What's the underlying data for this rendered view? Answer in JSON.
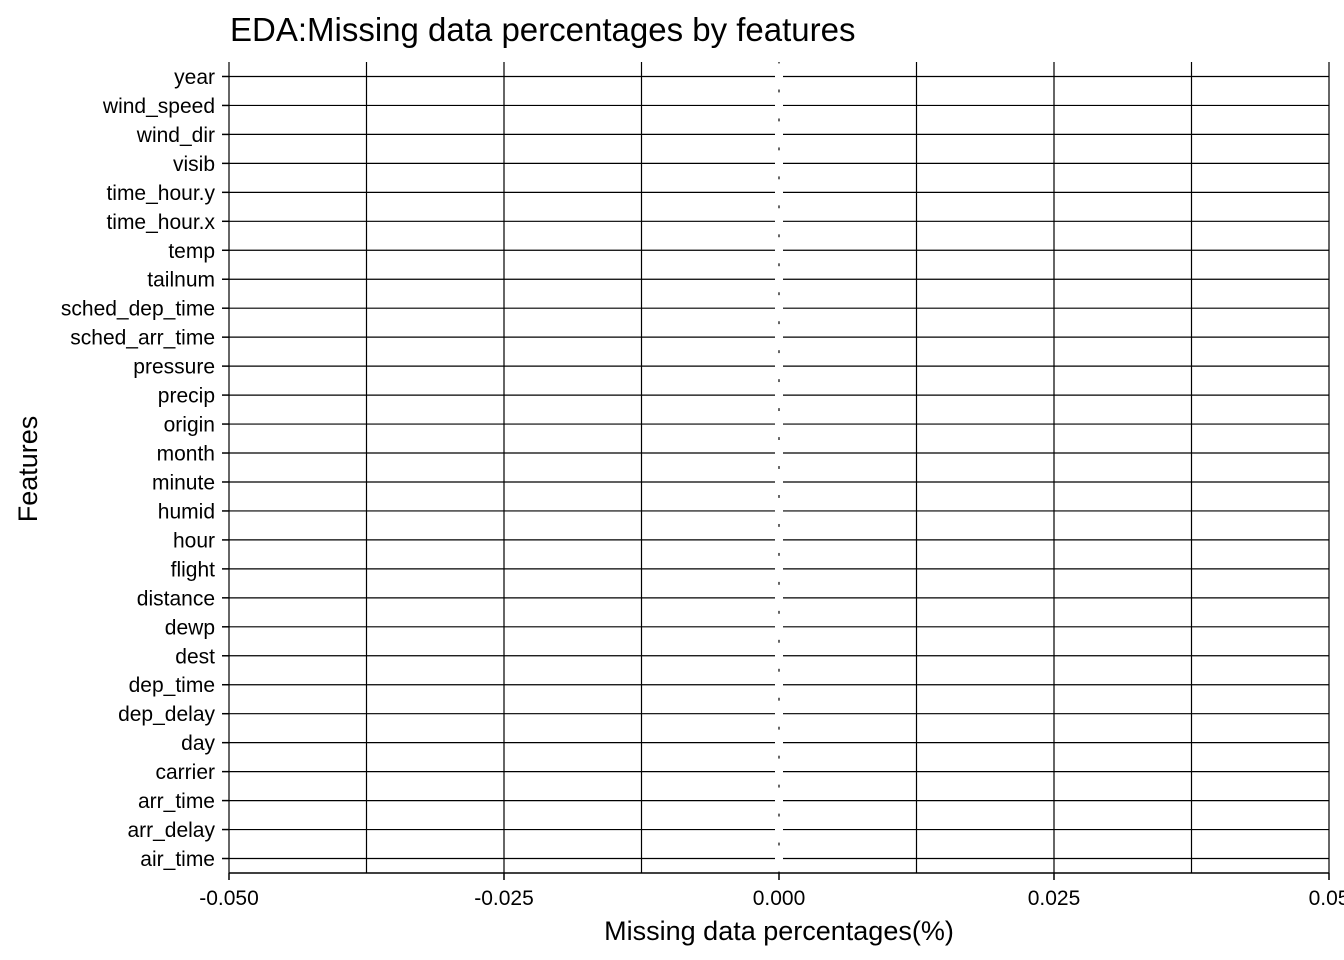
{
  "chart_data": {
    "type": "bar",
    "title": "EDA:Missing data percentages by features",
    "xlabel": "Missing data percentages(%)",
    "ylabel": "Features",
    "orientation": "horizontal",
    "categories": [
      "year",
      "wind_speed",
      "wind_dir",
      "visib",
      "time_hour.y",
      "time_hour.x",
      "temp",
      "tailnum",
      "sched_dep_time",
      "sched_arr_time",
      "pressure",
      "precip",
      "origin",
      "month",
      "minute",
      "humid",
      "hour",
      "flight",
      "distance",
      "dewp",
      "dest",
      "dep_time",
      "dep_delay",
      "day",
      "carrier",
      "arr_time",
      "arr_delay",
      "air_time"
    ],
    "values": [
      0,
      0,
      0,
      0,
      0,
      0,
      0,
      0,
      0,
      0,
      0,
      0,
      0,
      0,
      0,
      0,
      0,
      0,
      0,
      0,
      0,
      0,
      0,
      0,
      0,
      0,
      0,
      0
    ],
    "xlim": [
      -0.05,
      0.05
    ],
    "x_ticks": [
      -0.05,
      -0.025,
      0,
      0.025,
      0.05
    ],
    "x_tick_labels": [
      "-0.050",
      "-0.025",
      "0.000",
      "0.025",
      "0.05"
    ],
    "grid": true,
    "colors": {
      "grid": "#000000",
      "zero_line": "#ffffff",
      "text": "#000000",
      "background": "#ffffff"
    }
  }
}
